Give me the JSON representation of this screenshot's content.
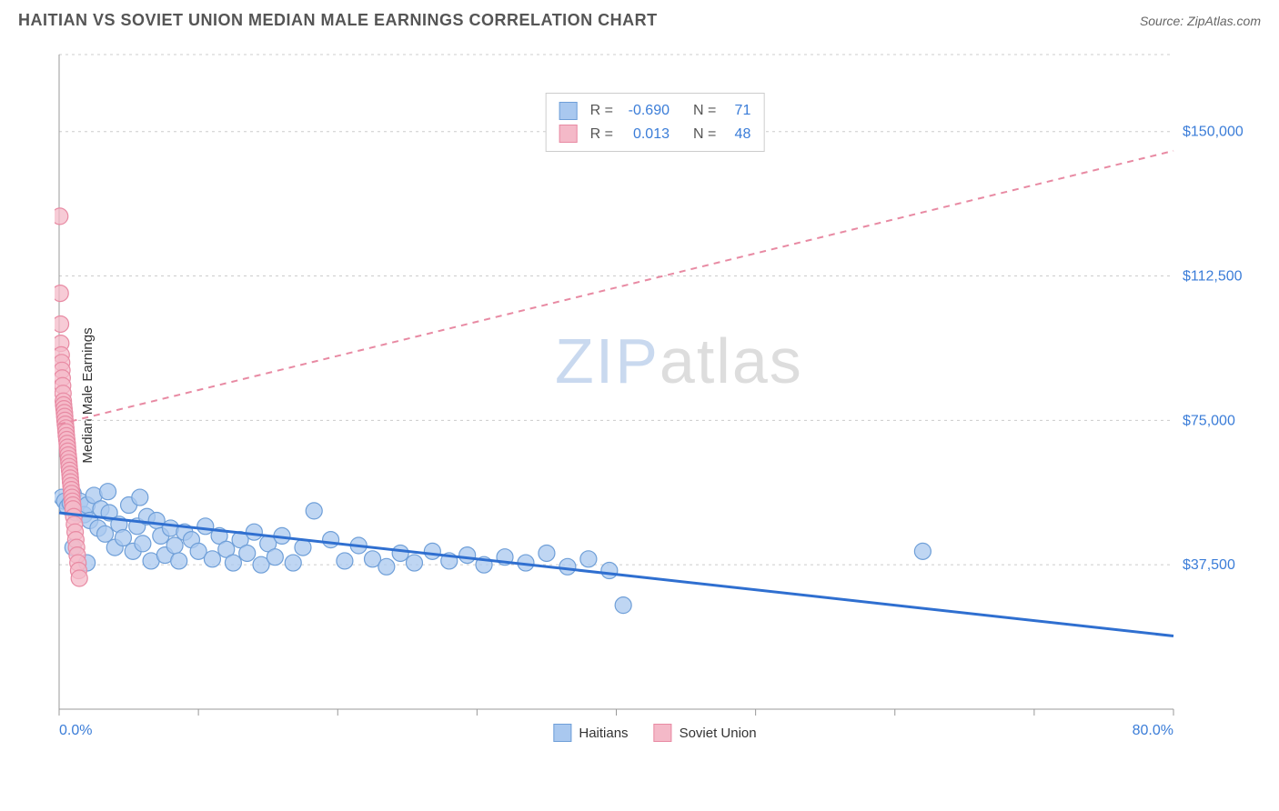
{
  "header": {
    "title": "HAITIAN VS SOVIET UNION MEDIAN MALE EARNINGS CORRELATION CHART",
    "source": "Source: ZipAtlas.com"
  },
  "chart": {
    "type": "scatter",
    "ylabel": "Median Male Earnings",
    "xlim": [
      0,
      80
    ],
    "ylim": [
      0,
      170000
    ],
    "x_tick_positions": [
      0,
      10,
      20,
      30,
      40,
      50,
      60,
      70,
      80
    ],
    "x_axis_labels": {
      "start": "0.0%",
      "end": "80.0%"
    },
    "y_grid_values": [
      37500,
      75000,
      112500,
      150000
    ],
    "y_grid_labels": [
      "$37,500",
      "$75,000",
      "$112,500",
      "$150,000"
    ],
    "background_color": "#ffffff",
    "grid_color": "#cccccc",
    "axis_color": "#999999",
    "series": [
      {
        "name": "Haitians",
        "color_fill": "#a9c8ef",
        "color_stroke": "#6f9fd8",
        "marker_radius": 9,
        "marker_opacity": 0.75,
        "trend": {
          "x1": 0,
          "y1": 51000,
          "x2": 80,
          "y2": 19000,
          "color": "#2f6fd0",
          "width": 3,
          "dash": "none"
        },
        "points": [
          [
            0.2,
            55000
          ],
          [
            0.4,
            54000
          ],
          [
            0.6,
            52500
          ],
          [
            0.8,
            53500
          ],
          [
            1.0,
            56000
          ],
          [
            1.2,
            51000
          ],
          [
            1.5,
            54000
          ],
          [
            1.8,
            50500
          ],
          [
            2.0,
            53000
          ],
          [
            2.2,
            49000
          ],
          [
            2.5,
            55500
          ],
          [
            2.8,
            47000
          ],
          [
            3.0,
            52000
          ],
          [
            3.3,
            45500
          ],
          [
            3.6,
            51000
          ],
          [
            4.0,
            42000
          ],
          [
            4.3,
            48000
          ],
          [
            4.6,
            44500
          ],
          [
            5.0,
            53000
          ],
          [
            5.3,
            41000
          ],
          [
            5.6,
            47500
          ],
          [
            6.0,
            43000
          ],
          [
            6.3,
            50000
          ],
          [
            6.6,
            38500
          ],
          [
            7.0,
            49000
          ],
          [
            7.3,
            45000
          ],
          [
            7.6,
            40000
          ],
          [
            8.0,
            47000
          ],
          [
            8.3,
            42500
          ],
          [
            8.6,
            38500
          ],
          [
            9.0,
            46000
          ],
          [
            9.5,
            44000
          ],
          [
            10.0,
            41000
          ],
          [
            10.5,
            47500
          ],
          [
            11.0,
            39000
          ],
          [
            11.5,
            45000
          ],
          [
            12.0,
            41500
          ],
          [
            12.5,
            38000
          ],
          [
            13.0,
            44000
          ],
          [
            13.5,
            40500
          ],
          [
            14.0,
            46000
          ],
          [
            14.5,
            37500
          ],
          [
            15.0,
            43000
          ],
          [
            15.5,
            39500
          ],
          [
            16.0,
            45000
          ],
          [
            16.8,
            38000
          ],
          [
            17.5,
            42000
          ],
          [
            18.3,
            51500
          ],
          [
            19.5,
            44000
          ],
          [
            20.5,
            38500
          ],
          [
            21.5,
            42500
          ],
          [
            22.5,
            39000
          ],
          [
            23.5,
            37000
          ],
          [
            24.5,
            40500
          ],
          [
            25.5,
            38000
          ],
          [
            26.8,
            41000
          ],
          [
            28.0,
            38500
          ],
          [
            29.3,
            40000
          ],
          [
            30.5,
            37500
          ],
          [
            32.0,
            39500
          ],
          [
            33.5,
            38000
          ],
          [
            35.0,
            40500
          ],
          [
            36.5,
            37000
          ],
          [
            38.0,
            39000
          ],
          [
            39.5,
            36000
          ],
          [
            40.5,
            27000
          ],
          [
            62.0,
            41000
          ],
          [
            1.0,
            42000
          ],
          [
            2.0,
            38000
          ],
          [
            3.5,
            56500
          ],
          [
            5.8,
            55000
          ]
        ]
      },
      {
        "name": "Soviet Union",
        "color_fill": "#f4b9c8",
        "color_stroke": "#e88aa3",
        "marker_radius": 9,
        "marker_opacity": 0.75,
        "trend": {
          "x1": 0,
          "y1": 74000,
          "x2": 80,
          "y2": 145000,
          "color": "#e88aa3",
          "width": 2,
          "dash": "7,6"
        },
        "points": [
          [
            0.05,
            128000
          ],
          [
            0.08,
            108000
          ],
          [
            0.1,
            100000
          ],
          [
            0.12,
            95000
          ],
          [
            0.15,
            92000
          ],
          [
            0.18,
            90000
          ],
          [
            0.2,
            88000
          ],
          [
            0.22,
            86000
          ],
          [
            0.25,
            84000
          ],
          [
            0.28,
            82000
          ],
          [
            0.3,
            80000
          ],
          [
            0.32,
            79000
          ],
          [
            0.35,
            78000
          ],
          [
            0.38,
            77000
          ],
          [
            0.4,
            76000
          ],
          [
            0.42,
            75000
          ],
          [
            0.45,
            74000
          ],
          [
            0.48,
            73000
          ],
          [
            0.5,
            72000
          ],
          [
            0.52,
            71000
          ],
          [
            0.55,
            70000
          ],
          [
            0.58,
            69000
          ],
          [
            0.6,
            68000
          ],
          [
            0.62,
            67000
          ],
          [
            0.65,
            66000
          ],
          [
            0.68,
            65000
          ],
          [
            0.7,
            64000
          ],
          [
            0.72,
            63000
          ],
          [
            0.75,
            62000
          ],
          [
            0.78,
            61000
          ],
          [
            0.8,
            60000
          ],
          [
            0.82,
            59000
          ],
          [
            0.85,
            58000
          ],
          [
            0.88,
            57000
          ],
          [
            0.9,
            56000
          ],
          [
            0.92,
            55000
          ],
          [
            0.95,
            54000
          ],
          [
            0.98,
            53000
          ],
          [
            1.0,
            52000
          ],
          [
            1.05,
            50000
          ],
          [
            1.1,
            48000
          ],
          [
            1.15,
            46000
          ],
          [
            1.2,
            44000
          ],
          [
            1.25,
            42000
          ],
          [
            1.3,
            40000
          ],
          [
            1.35,
            38000
          ],
          [
            1.4,
            36000
          ],
          [
            1.45,
            34000
          ]
        ]
      }
    ],
    "stats": [
      {
        "swatch_fill": "#a9c8ef",
        "swatch_stroke": "#6f9fd8",
        "r": "-0.690",
        "n": "71"
      },
      {
        "swatch_fill": "#f4b9c8",
        "swatch_stroke": "#e88aa3",
        "r": "0.013",
        "n": "48"
      }
    ],
    "watermark": {
      "part1": "ZIP",
      "part2": "atlas"
    }
  }
}
